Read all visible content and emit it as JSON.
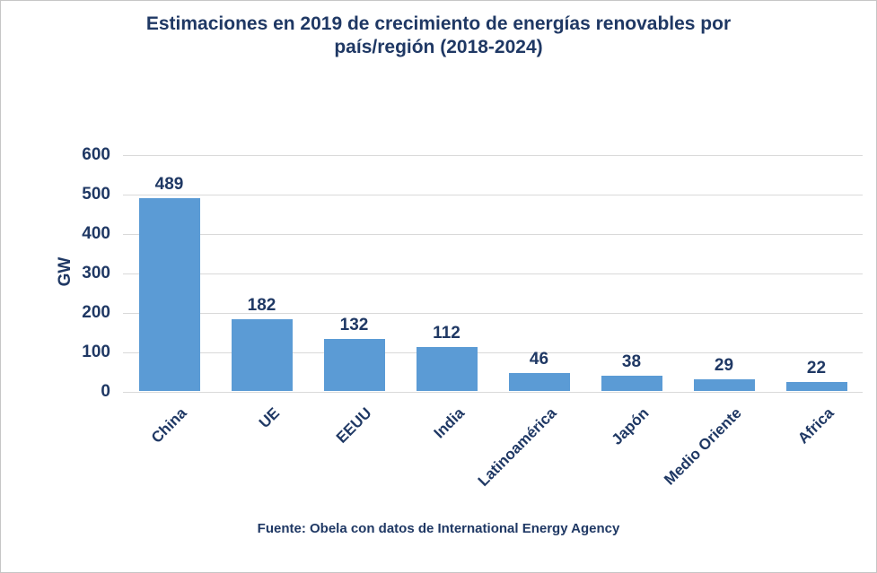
{
  "header": {
    "title_lines": [
      "Estimaciones en 2019 de crecimiento de energías renovables por",
      "país/región (2018-2024)"
    ]
  },
  "chart_data": {
    "type": "bar",
    "title": "Estimaciones en 2019 de crecimiento de energías renovables por país/región (2018-2024)",
    "categories": [
      "China",
      "UE",
      "EEUU",
      "India",
      "Latinoamérica",
      "Japón",
      "Medio Oriente",
      "Africa"
    ],
    "values": [
      489,
      182,
      132,
      112,
      46,
      38,
      29,
      22
    ],
    "xlabel": "",
    "ylabel": "GW",
    "ylim": [
      0,
      600
    ],
    "ytick_step": 100,
    "yticks": [
      0,
      100,
      200,
      300,
      400,
      500,
      600
    ],
    "grid": true,
    "legend": false,
    "data_labels": true,
    "source": "Fuente: Obela con datos de International Energy Agency",
    "colors": {
      "bar": "#5B9BD5",
      "text": "#1F3864",
      "gridline": "#D9D9D9"
    }
  }
}
